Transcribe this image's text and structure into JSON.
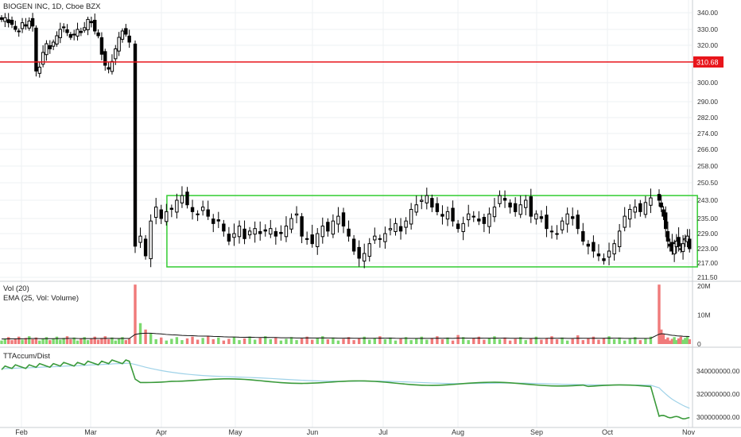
{
  "chart_data": [
    {
      "type": "candlestick",
      "title": "BIOGEN INC, 1D, Cboe BZX",
      "price_ticks": [
        "340.00",
        "330.00",
        "320.00",
        "310.68",
        "300.00",
        "290.00",
        "282.00",
        "274.00",
        "266.00",
        "258.00",
        "250.50",
        "243.00",
        "235.00",
        "229.00",
        "223.00",
        "217.00",
        "211.50"
      ],
      "x_tick_labels": [
        "Feb",
        "Mar",
        "Apr",
        "May",
        "Jun",
        "Jul",
        "Aug",
        "Sep",
        "Oct",
        "Nov"
      ],
      "horizontal_line": {
        "value": 310.68,
        "label": "310.68",
        "color": "#e8151b"
      },
      "highlight_box": {
        "y_range": [
          215.5,
          245
        ],
        "color": "#33cc33"
      },
      "series": [
        {
          "close": [
            336,
            337,
            334,
            333,
            330,
            329,
            334,
            332,
            335,
            332,
            306,
            308,
            316,
            321,
            318,
            322,
            326,
            330,
            331,
            328,
            325,
            327,
            330,
            328,
            331,
            336,
            334,
            329,
            326,
            315,
            309,
            307,
            311,
            318,
            325,
            329,
            327,
            322,
            224,
            228,
            220,
            234,
            240,
            235,
            238,
            239,
            243,
            245,
            241,
            238,
            237,
            240,
            236,
            233,
            234,
            230,
            226,
            229,
            232,
            227,
            230,
            231,
            229,
            230,
            231,
            228,
            229,
            232,
            235,
            237,
            228,
            227,
            225,
            229,
            232,
            230,
            234,
            236,
            232,
            228,
            222,
            219,
            221,
            225,
            228,
            227,
            229,
            231,
            233,
            230,
            234,
            239,
            241,
            243,
            245,
            240,
            238,
            236,
            238,
            234,
            231,
            233,
            237,
            236,
            234,
            233,
            237,
            240,
            245,
            243,
            240,
            238,
            241,
            243,
            236,
            237,
            235,
            231,
            230,
            229,
            234,
            237,
            235,
            231,
            226,
            224,
            222,
            220,
            218,
            222,
            225,
            230,
            236,
            239,
            240,
            238,
            242,
            244,
            243,
            240,
            236,
            231,
            226,
            224,
            222,
            225,
            226,
            224,
            223,
            225,
            227,
            228,
            223
          ]
        }
      ]
    },
    {
      "type": "bar",
      "legend": [
        "Vol (20)",
        "EMA (25, Vol: Volume)"
      ],
      "axis_ticks": [
        "20M",
        "10M",
        "0"
      ],
      "ylim": [
        0,
        20000000
      ],
      "colors": {
        "up": "#7cda6f",
        "down": "#f07a7a",
        "ema": "#111111"
      }
    },
    {
      "type": "line",
      "legend": [
        "TTAccum/Dist"
      ],
      "axis_ticks": [
        "340000000.00",
        "320000000.00",
        "300000000.00"
      ],
      "ylim": [
        296000000,
        344000000
      ],
      "colors": {
        "main": "#3a9a3a",
        "signal": "#9fd2e8"
      }
    }
  ]
}
